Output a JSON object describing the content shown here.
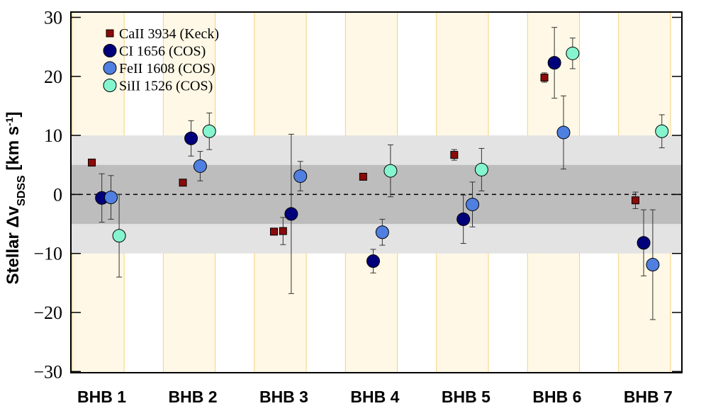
{
  "chart_data": {
    "type": "errorbar",
    "categories": [
      "BHB 1",
      "BHB 2",
      "BHB 3",
      "BHB 4",
      "BHB 5",
      "BHB 6",
      "BHB 7"
    ],
    "ylabel": [
      "Stellar Δv",
      "SDSS",
      " [km s",
      "-1",
      "]"
    ],
    "xlim": [
      0.7,
      7.41
    ],
    "ylim": [
      -30.2,
      30.9
    ],
    "yticks": [
      {
        "value": -30,
        "label": "−30"
      },
      {
        "value": -20,
        "label": "−20"
      },
      {
        "value": -10,
        "label": "−10"
      },
      0,
      10,
      20,
      30
    ],
    "bands": [
      {
        "range": [
          -10,
          10
        ],
        "color": "#e3e3e3"
      },
      {
        "range": [
          -5,
          5
        ],
        "color": "#bdbdbd"
      }
    ],
    "reference_line": 0,
    "highlight_color": "#fff8e6",
    "legend": "upper left",
    "series": [
      {
        "name": "CaII 3934 (Keck)",
        "color": "#8b0a0a",
        "marker": "square",
        "x": [
          0.93,
          1.93,
          2.93,
          3.03,
          3.91,
          4.91,
          5.9,
          6.9
        ],
        "values": [
          5.4,
          2.0,
          -6.3,
          -6.2,
          3.0,
          6.7,
          19.8,
          -1.0
        ],
        "errors": [
          null,
          null,
          null,
          2.3,
          null,
          0.9,
          0.8,
          1.4
        ]
      },
      {
        "name": "CI 1656 (COS)",
        "color": "#00007a",
        "marker": "circle",
        "x": [
          1.04,
          2.02,
          3.12,
          4.02,
          5.01,
          6.01,
          6.99
        ],
        "values": [
          -0.6,
          9.5,
          -3.3,
          -11.3,
          -4.2,
          22.3,
          -8.2
        ],
        "errors": [
          4.1,
          3.0,
          13.5,
          2.0,
          4.1,
          6.0,
          5.6
        ]
      },
      {
        "name": "FeII 1608 (COS)",
        "color": "#4f7fe0",
        "marker": "circle",
        "x": [
          1.14,
          2.12,
          3.22,
          4.12,
          5.11,
          6.11,
          7.09
        ],
        "values": [
          -0.5,
          4.8,
          3.1,
          -6.4,
          -1.7,
          10.5,
          -11.9
        ],
        "errors": [
          3.7,
          2.5,
          2.5,
          2.2,
          3.8,
          6.2,
          9.3
        ]
      },
      {
        "name": "SiII 1526 (COS)",
        "color": "#84f5cf",
        "marker": "circle",
        "x": [
          1.23,
          2.22,
          4.21,
          5.21,
          6.21,
          7.19
        ],
        "values": [
          -7.0,
          10.7,
          4.0,
          4.2,
          23.9,
          10.7
        ],
        "errors": [
          7.0,
          3.1,
          4.4,
          3.6,
          2.6,
          2.8
        ]
      }
    ]
  }
}
